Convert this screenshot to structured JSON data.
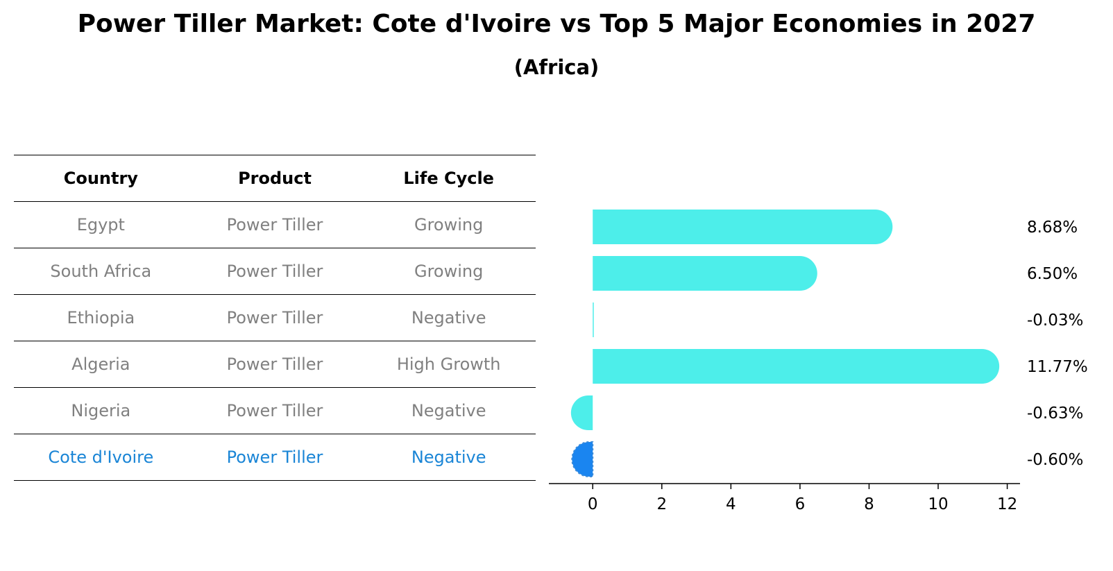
{
  "title": "Power Tiller Market: Cote d'Ivoire vs Top 5 Major Economies in 2027",
  "subtitle": "(Africa)",
  "table": {
    "headers": [
      "Country",
      "Product",
      "Life Cycle"
    ],
    "rows": [
      {
        "country": "Egypt",
        "product": "Power Tiller",
        "life_cycle": "Growing"
      },
      {
        "country": "South Africa",
        "product": "Power Tiller",
        "life_cycle": "Growing"
      },
      {
        "country": "Ethiopia",
        "product": "Power Tiller",
        "life_cycle": "Negative"
      },
      {
        "country": "Algeria",
        "product": "Power Tiller",
        "life_cycle": "High Growth"
      },
      {
        "country": "Nigeria",
        "product": "Power Tiller",
        "life_cycle": "Negative"
      },
      {
        "country": "Cote d'Ivoire",
        "product": "Power Tiller",
        "life_cycle": "Negative"
      }
    ]
  },
  "colors": {
    "bar": "#4deeea",
    "highlight": "#1a85f0",
    "highlight_text": "#1a85d6",
    "muted_text": "#808080"
  },
  "chart_data": {
    "type": "bar",
    "orientation": "horizontal",
    "categories": [
      "Egypt",
      "South Africa",
      "Ethiopia",
      "Algeria",
      "Nigeria",
      "Cote d'Ivoire"
    ],
    "values": [
      8.68,
      6.5,
      -0.03,
      11.77,
      -0.63,
      -0.6
    ],
    "value_labels": [
      "8.68%",
      "6.50%",
      "-0.03%",
      "11.77%",
      "-0.63%",
      "-0.60%"
    ],
    "highlight": "Cote d'Ivoire",
    "xlim": [
      -1.27,
      12.37
    ],
    "xticks": [
      0,
      2,
      4,
      6,
      8,
      10,
      12
    ],
    "xtick_labels": [
      "0",
      "2",
      "4",
      "6",
      "8",
      "10",
      "12"
    ]
  }
}
